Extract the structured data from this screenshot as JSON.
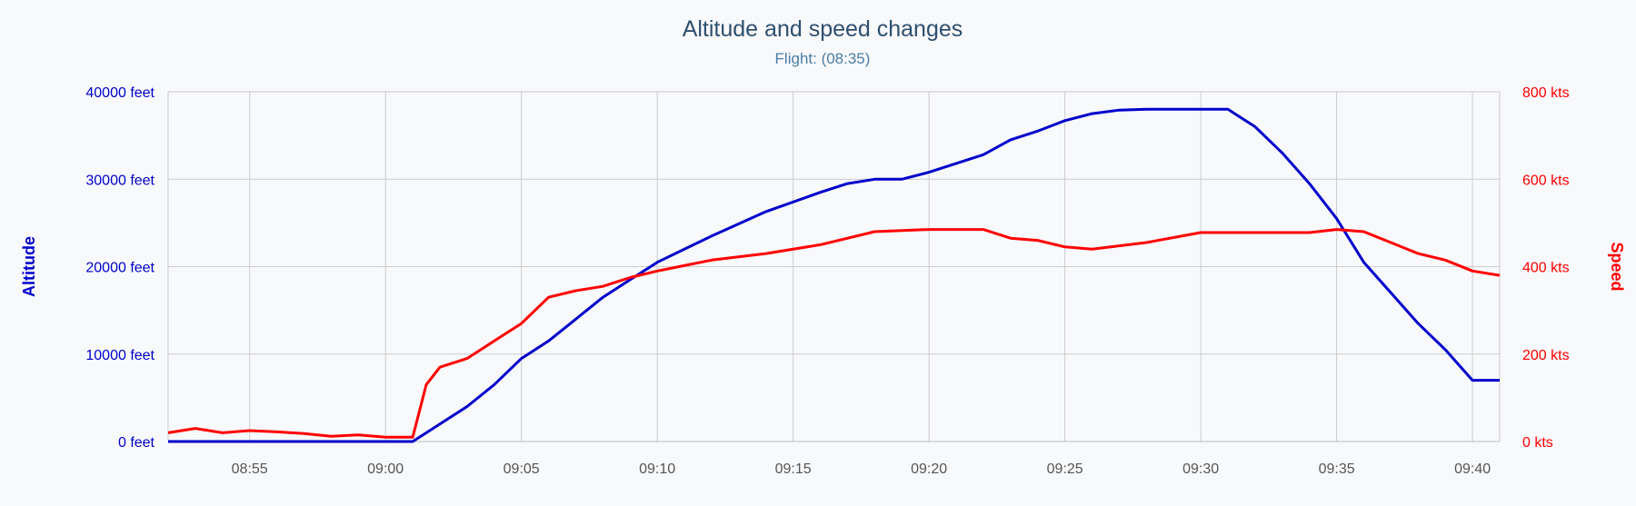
{
  "chart_data": {
    "type": "line",
    "title": "Altitude and speed changes",
    "subtitle": "Flight: (08:35)",
    "x_ticks": [
      "08:55",
      "09:00",
      "09:05",
      "09:10",
      "09:15",
      "09:20",
      "09:25",
      "09:30",
      "09:35",
      "09:40"
    ],
    "xlim": [
      "08:52",
      "09:41"
    ],
    "grid": true,
    "axes": {
      "left": {
        "label": "Altitude",
        "ylim": [
          0,
          40000
        ],
        "tick_values": [
          0,
          10000,
          20000,
          30000,
          40000
        ],
        "tick_labels": [
          "0 feet",
          "10000 feet",
          "20000 feet",
          "30000 feet",
          "40000 feet"
        ],
        "color": "#0000cc"
      },
      "right": {
        "label": "Speed",
        "ylim": [
          0,
          800
        ],
        "tick_values": [
          0,
          200,
          400,
          600,
          800
        ],
        "tick_labels": [
          "0 kts",
          "200 kts",
          "400 kts",
          "600 kts",
          "800 kts"
        ],
        "color": "#ff0000"
      }
    },
    "series": [
      {
        "axis": "left",
        "color": "#0000cc",
        "points": [
          [
            "08:52",
            0
          ],
          [
            "09:01",
            0
          ],
          [
            "09:02",
            2000
          ],
          [
            "09:03",
            4000
          ],
          [
            "09:04",
            6500
          ],
          [
            "09:05",
            9500
          ],
          [
            "09:06",
            11500
          ],
          [
            "09:07",
            14000
          ],
          [
            "09:08",
            16500
          ],
          [
            "09:09",
            18500
          ],
          [
            "09:10",
            20500
          ],
          [
            "09:12",
            23500
          ],
          [
            "09:14",
            26300
          ],
          [
            "09:16",
            28500
          ],
          [
            "09:17",
            29500
          ],
          [
            "09:18",
            30000
          ],
          [
            "09:19",
            30000
          ],
          [
            "09:20",
            30800
          ],
          [
            "09:22",
            32800
          ],
          [
            "09:23",
            34500
          ],
          [
            "09:24",
            35500
          ],
          [
            "09:25",
            36700
          ],
          [
            "09:26",
            37500
          ],
          [
            "09:27",
            37900
          ],
          [
            "09:28",
            38000
          ],
          [
            "09:31",
            38000
          ],
          [
            "09:32",
            36000
          ],
          [
            "09:33",
            33000
          ],
          [
            "09:34",
            29500
          ],
          [
            "09:35",
            25500
          ],
          [
            "09:36",
            20500
          ],
          [
            "09:37",
            17000
          ],
          [
            "09:38",
            13500
          ],
          [
            "09:39",
            10500
          ],
          [
            "09:40",
            7000
          ],
          [
            "09:41",
            7000
          ]
        ]
      },
      {
        "axis": "right",
        "color": "#ff0000",
        "points": [
          [
            "08:52",
            20
          ],
          [
            "08:53",
            30
          ],
          [
            "08:54",
            20
          ],
          [
            "08:55",
            25
          ],
          [
            "08:56",
            22
          ],
          [
            "08:57",
            18
          ],
          [
            "08:58",
            12
          ],
          [
            "08:59",
            15
          ],
          [
            "09:00",
            10
          ],
          [
            "09:01",
            10
          ],
          [
            "09:01.5",
            130
          ],
          [
            "09:02",
            170
          ],
          [
            "09:03",
            190
          ],
          [
            "09:04",
            230
          ],
          [
            "09:05",
            270
          ],
          [
            "09:06",
            330
          ],
          [
            "09:07",
            345
          ],
          [
            "09:08",
            355
          ],
          [
            "09:09",
            375
          ],
          [
            "09:10",
            390
          ],
          [
            "09:12",
            415
          ],
          [
            "09:14",
            430
          ],
          [
            "09:16",
            450
          ],
          [
            "09:18",
            480
          ],
          [
            "09:20",
            485
          ],
          [
            "09:22",
            485
          ],
          [
            "09:23",
            465
          ],
          [
            "09:24",
            460
          ],
          [
            "09:25",
            445
          ],
          [
            "09:26",
            440
          ],
          [
            "09:28",
            455
          ],
          [
            "09:30",
            478
          ],
          [
            "09:32",
            478
          ],
          [
            "09:34",
            478
          ],
          [
            "09:35",
            485
          ],
          [
            "09:36",
            480
          ],
          [
            "09:37",
            455
          ],
          [
            "09:38",
            430
          ],
          [
            "09:39",
            415
          ],
          [
            "09:40",
            390
          ],
          [
            "09:41",
            380
          ]
        ]
      }
    ]
  }
}
